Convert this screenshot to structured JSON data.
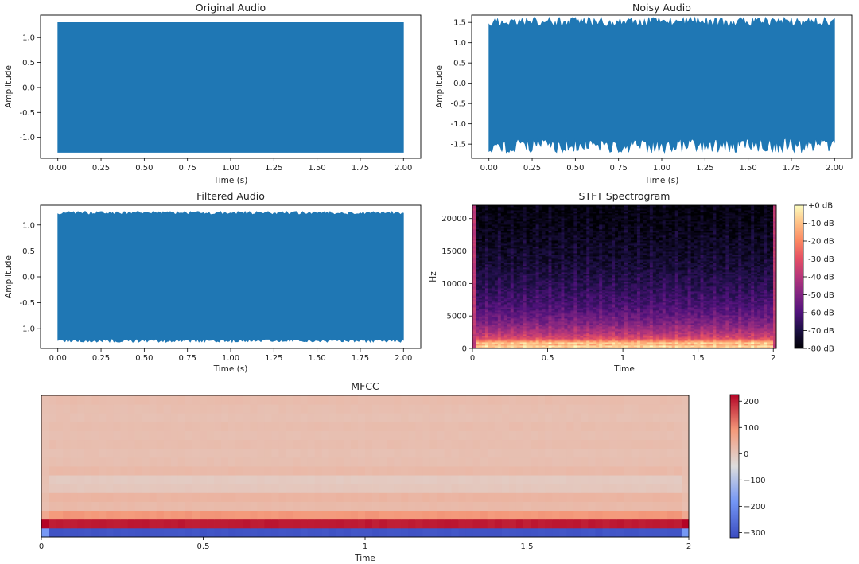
{
  "chart_data": [
    {
      "id": "original",
      "type": "line",
      "title": "Original Audio",
      "xlabel": "Time (s)",
      "ylabel": "Amplitude",
      "xlim": [
        -0.1,
        2.1
      ],
      "ylim": [
        -1.42,
        1.45
      ],
      "xticks": [
        "0.00",
        "0.25",
        "0.50",
        "0.75",
        "1.00",
        "1.25",
        "1.50",
        "1.75",
        "2.00"
      ],
      "yticks": [
        "-1.0",
        "-0.5",
        "0.0",
        "0.5",
        "1.0"
      ],
      "series": [
        {
          "color": "#1f77b4",
          "x_range": [
            0,
            2
          ],
          "envelope": [
            -1.3,
            1.3
          ]
        }
      ]
    },
    {
      "id": "noisy",
      "type": "line",
      "title": "Noisy Audio",
      "xlabel": "Time (s)",
      "ylabel": "Amplitude",
      "xlim": [
        -0.1,
        2.1
      ],
      "ylim": [
        -1.85,
        1.68
      ],
      "xticks": [
        "0.00",
        "0.25",
        "0.50",
        "0.75",
        "1.00",
        "1.25",
        "1.50",
        "1.75",
        "2.00"
      ],
      "yticks": [
        "-1.5",
        "-1.0",
        "-0.5",
        "0.0",
        "0.5",
        "1.0",
        "1.5"
      ],
      "series": [
        {
          "color": "#1f77b4",
          "x_range": [
            0,
            2
          ],
          "envelope": [
            -1.48,
            1.48
          ],
          "peak": [
            -1.7,
            1.62
          ]
        }
      ]
    },
    {
      "id": "filtered",
      "type": "line",
      "title": "Filtered Audio",
      "xlabel": "Time (s)",
      "ylabel": "Amplitude",
      "xlim": [
        -0.1,
        2.1
      ],
      "ylim": [
        -1.38,
        1.38
      ],
      "xticks": [
        "0.00",
        "0.25",
        "0.50",
        "0.75",
        "1.00",
        "1.25",
        "1.50",
        "1.75",
        "2.00"
      ],
      "yticks": [
        "-1.0",
        "-0.5",
        "0.0",
        "0.5",
        "1.0"
      ],
      "series": [
        {
          "color": "#1f77b4",
          "x_range": [
            0,
            2
          ],
          "envelope": [
            -1.22,
            1.22
          ],
          "peak": [
            -1.26,
            1.26
          ]
        }
      ]
    },
    {
      "id": "stft",
      "type": "heatmap",
      "title": "STFT Spectrogram",
      "xlabel": "Time",
      "ylabel": "Hz",
      "xlim": [
        0,
        2.02
      ],
      "ylim": [
        0,
        22050
      ],
      "xticks": [
        "0",
        "0.5",
        "1",
        "1.5",
        "2"
      ],
      "yticks": [
        "0",
        "5000",
        "10000",
        "15000",
        "20000"
      ],
      "colormap": "magma",
      "colorbar_ticks": [
        "+0 dB",
        "-10 dB",
        "-20 dB",
        "-30 dB",
        "-40 dB",
        "-50 dB",
        "-60 dB",
        "-70 dB",
        "-80 dB"
      ],
      "colorbar_range": [
        -80,
        0
      ],
      "energy": [
        {
          "hz": 0,
          "db": -10
        },
        {
          "hz": 250,
          "db": -14
        },
        {
          "hz": 450,
          "db": -3
        },
        {
          "hz": 700,
          "db": -20
        },
        {
          "hz": 950,
          "db": -3
        },
        {
          "hz": 1150,
          "db": -22
        },
        {
          "hz": 1500,
          "db": -32
        },
        {
          "hz": 2500,
          "db": -42
        },
        {
          "hz": 4000,
          "db": -52
        },
        {
          "hz": 6000,
          "db": -60
        },
        {
          "hz": 9000,
          "db": -67
        },
        {
          "hz": 13000,
          "db": -73
        },
        {
          "hz": 18000,
          "db": -77
        },
        {
          "hz": 22050,
          "db": -80
        }
      ]
    },
    {
      "id": "mfcc",
      "type": "heatmap",
      "title": "MFCC",
      "xlabel": "Time",
      "xlim": [
        0,
        2
      ],
      "xticks": [
        "0",
        "0.5",
        "1",
        "1.5",
        "2"
      ],
      "colormap": "coolwarm",
      "colorbar_ticks": [
        "200",
        "100",
        "0",
        "−100",
        "−200",
        "−300"
      ],
      "colorbar_range": [
        -320,
        225
      ],
      "coefficient_values": [
        -305,
        205,
        90,
        25,
        35,
        -2,
        -8,
        25,
        15,
        12,
        18,
        14,
        18,
        12,
        15,
        20
      ],
      "edge_coefficient_values": [
        -180,
        230,
        60,
        15,
        20,
        10,
        12,
        15,
        12,
        10,
        12,
        10,
        12,
        10,
        12,
        14
      ]
    }
  ]
}
